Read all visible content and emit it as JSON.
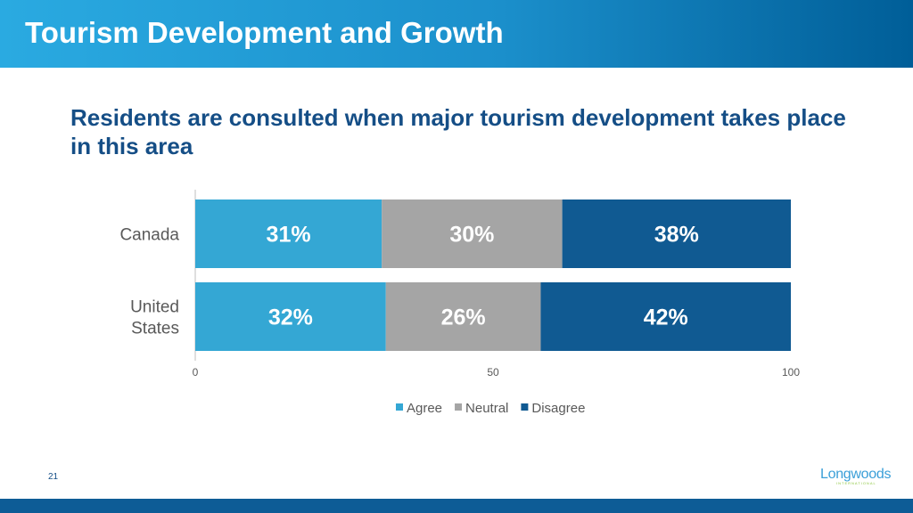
{
  "header": {
    "title": "Tourism Development and Growth"
  },
  "chart_data": {
    "type": "bar",
    "orientation": "horizontal",
    "stacked": "100%",
    "title": "Residents are consulted when major tourism development takes place in this area",
    "categories": [
      "Canada",
      "United States"
    ],
    "series": [
      {
        "name": "Agree",
        "values": [
          31,
          32
        ],
        "labels": [
          "31%",
          "32%"
        ],
        "color": "#34a7d4"
      },
      {
        "name": "Neutral",
        "values": [
          30,
          26
        ],
        "labels": [
          "30%",
          "26%"
        ],
        "color": "#a5a5a5"
      },
      {
        "name": "Disagree",
        "values": [
          38,
          42
        ],
        "labels": [
          "38%",
          "42%"
        ],
        "color": "#105a92"
      }
    ],
    "xlim": [
      0,
      100
    ],
    "xticks": [
      "0",
      "50",
      "100"
    ],
    "grid": false,
    "legend": "bottom"
  },
  "footer": {
    "page_number": "21",
    "logo": "Longwoods International"
  }
}
